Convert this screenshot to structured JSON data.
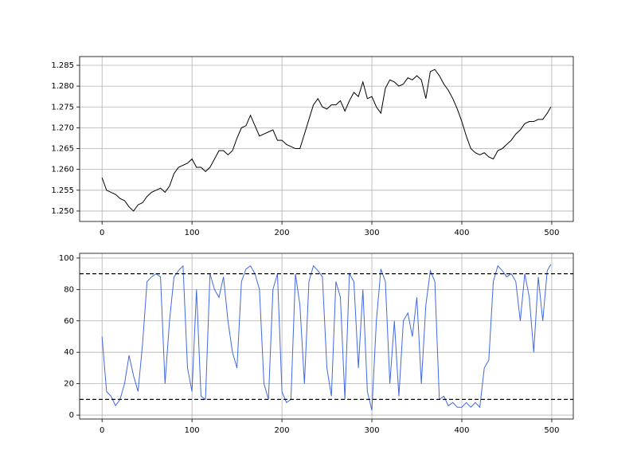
{
  "chart_data": [
    {
      "type": "line",
      "x": [
        0,
        5,
        10,
        15,
        20,
        25,
        30,
        35,
        40,
        45,
        50,
        55,
        60,
        65,
        70,
        75,
        80,
        85,
        90,
        95,
        100,
        105,
        110,
        115,
        120,
        125,
        130,
        135,
        140,
        145,
        150,
        155,
        160,
        165,
        170,
        175,
        180,
        185,
        190,
        195,
        200,
        205,
        210,
        215,
        220,
        225,
        230,
        235,
        240,
        245,
        250,
        255,
        260,
        265,
        270,
        275,
        280,
        285,
        290,
        295,
        300,
        305,
        310,
        315,
        320,
        325,
        330,
        335,
        340,
        345,
        350,
        355,
        360,
        365,
        370,
        375,
        380,
        385,
        390,
        395,
        400,
        405,
        410,
        415,
        420,
        425,
        430,
        435,
        440,
        445,
        450,
        455,
        460,
        465,
        470,
        475,
        480,
        485,
        490,
        495,
        499
      ],
      "series": [
        {
          "color": "#000000",
          "values": [
            1.258,
            1.255,
            1.2545,
            1.254,
            1.253,
            1.2525,
            1.251,
            1.25,
            1.2515,
            1.252,
            1.2535,
            1.2545,
            1.255,
            1.2555,
            1.2545,
            1.256,
            1.259,
            1.2605,
            1.261,
            1.2615,
            1.2625,
            1.2605,
            1.2605,
            1.2595,
            1.2605,
            1.2625,
            1.2645,
            1.2645,
            1.2635,
            1.2645,
            1.2675,
            1.27,
            1.2705,
            1.273,
            1.2705,
            1.268,
            1.2685,
            1.269,
            1.2695,
            1.267,
            1.267,
            1.266,
            1.2655,
            1.265,
            1.265,
            1.2685,
            1.272,
            1.2755,
            1.277,
            1.275,
            1.2745,
            1.2755,
            1.2755,
            1.2765,
            1.274,
            1.2765,
            1.2785,
            1.2775,
            1.281,
            1.277,
            1.2775,
            1.275,
            1.2735,
            1.2795,
            1.2815,
            1.281,
            1.28,
            1.2805,
            1.282,
            1.2815,
            1.2825,
            1.2815,
            1.277,
            1.2835,
            1.284,
            1.2825,
            1.2805,
            1.279,
            1.277,
            1.2745,
            1.2715,
            1.268,
            1.265,
            1.264,
            1.2635,
            1.264,
            1.263,
            1.2625,
            1.2645,
            1.265,
            1.266,
            1.267,
            1.2685,
            1.2695,
            1.271,
            1.2715,
            1.2715,
            1.272,
            1.272,
            1.2735,
            1.275
          ]
        }
      ],
      "xlim": [
        -24.95,
        523.95
      ],
      "xticks": [
        0,
        100,
        200,
        300,
        400,
        500
      ],
      "ylim": [
        1.2475,
        1.2871
      ],
      "yticks": [
        {
          "value": 1.25,
          "label": "1.250"
        },
        {
          "value": 1.255,
          "label": "1.255"
        },
        {
          "value": 1.26,
          "label": "1.260"
        },
        {
          "value": 1.265,
          "label": "1.265"
        },
        {
          "value": 1.27,
          "label": "1.270"
        },
        {
          "value": 1.275,
          "label": "1.275"
        },
        {
          "value": 1.28,
          "label": "1.280"
        },
        {
          "value": 1.285,
          "label": "1.285"
        }
      ],
      "grid": true
    },
    {
      "type": "line",
      "x": [
        0,
        5,
        10,
        15,
        20,
        25,
        30,
        35,
        40,
        45,
        50,
        55,
        60,
        65,
        70,
        75,
        80,
        85,
        90,
        95,
        100,
        105,
        110,
        115,
        120,
        125,
        130,
        135,
        140,
        145,
        150,
        155,
        160,
        165,
        170,
        175,
        180,
        185,
        190,
        195,
        200,
        205,
        210,
        215,
        220,
        225,
        230,
        235,
        240,
        245,
        250,
        255,
        260,
        265,
        270,
        275,
        280,
        285,
        290,
        295,
        300,
        305,
        310,
        315,
        320,
        325,
        330,
        335,
        340,
        345,
        350,
        355,
        360,
        365,
        370,
        375,
        380,
        385,
        390,
        395,
        400,
        405,
        410,
        415,
        420,
        425,
        430,
        435,
        440,
        445,
        450,
        455,
        460,
        465,
        470,
        475,
        480,
        485,
        490,
        495,
        499
      ],
      "series": [
        {
          "color": "#4169e1",
          "values": [
            50,
            15,
            12,
            6,
            10,
            20,
            38,
            25,
            15,
            45,
            85,
            88,
            90,
            88,
            20,
            60,
            88,
            92,
            95,
            30,
            15,
            80,
            12,
            10,
            90,
            80,
            75,
            88,
            60,
            40,
            30,
            85,
            93,
            95,
            90,
            80,
            20,
            10,
            80,
            90,
            15,
            8,
            10,
            90,
            70,
            20,
            85,
            95,
            92,
            88,
            30,
            12,
            85,
            75,
            10,
            90,
            85,
            30,
            80,
            15,
            3,
            60,
            93,
            85,
            20,
            60,
            12,
            60,
            65,
            50,
            75,
            20,
            70,
            92,
            85,
            10,
            12,
            6,
            8,
            5,
            5,
            8,
            5,
            8,
            5,
            30,
            35,
            85,
            95,
            92,
            88,
            90,
            85,
            60,
            90,
            75,
            40,
            88,
            60,
            92,
            96
          ]
        }
      ],
      "reference_lines": [
        10,
        90
      ],
      "xlim": [
        -24.95,
        523.95
      ],
      "xticks": [
        0,
        100,
        200,
        300,
        400,
        500
      ],
      "ylim": [
        -2.5,
        103
      ],
      "yticks": [
        0,
        20,
        40,
        60,
        80,
        100
      ],
      "grid": true
    }
  ]
}
